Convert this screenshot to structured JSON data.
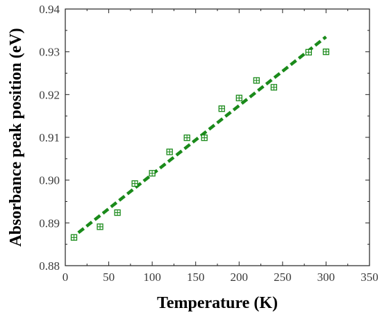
{
  "chart_data": {
    "type": "scatter",
    "xlabel": "Temperature (K)",
    "ylabel": "Absorbance peak position (eV)",
    "xlim": [
      0,
      350
    ],
    "ylim": [
      0.88,
      0.94
    ],
    "x_ticks": [
      "0",
      "50",
      "100",
      "150",
      "200",
      "250",
      "300",
      "350"
    ],
    "y_ticks": [
      "0.88",
      "0.89",
      "0.90",
      "0.91",
      "0.92",
      "0.93",
      "0.94"
    ],
    "grid": false,
    "legend": "none",
    "series": [
      {
        "marker": "square-crosshair",
        "color": "#1a8a1a",
        "x": [
          10,
          40,
          60,
          80,
          100,
          120,
          140,
          160,
          180,
          200,
          220,
          240,
          280,
          300
        ],
        "y": [
          0.8866,
          0.8891,
          0.8924,
          0.8992,
          0.9016,
          0.9066,
          0.9099,
          0.9099,
          0.9167,
          0.9192,
          0.9233,
          0.9217,
          0.9299,
          0.93
        ]
      }
    ],
    "fit_line": {
      "style": "dashed",
      "color": "#1a8a1a",
      "x": [
        15,
        300
      ],
      "y": [
        0.8877,
        0.9335
      ]
    }
  }
}
